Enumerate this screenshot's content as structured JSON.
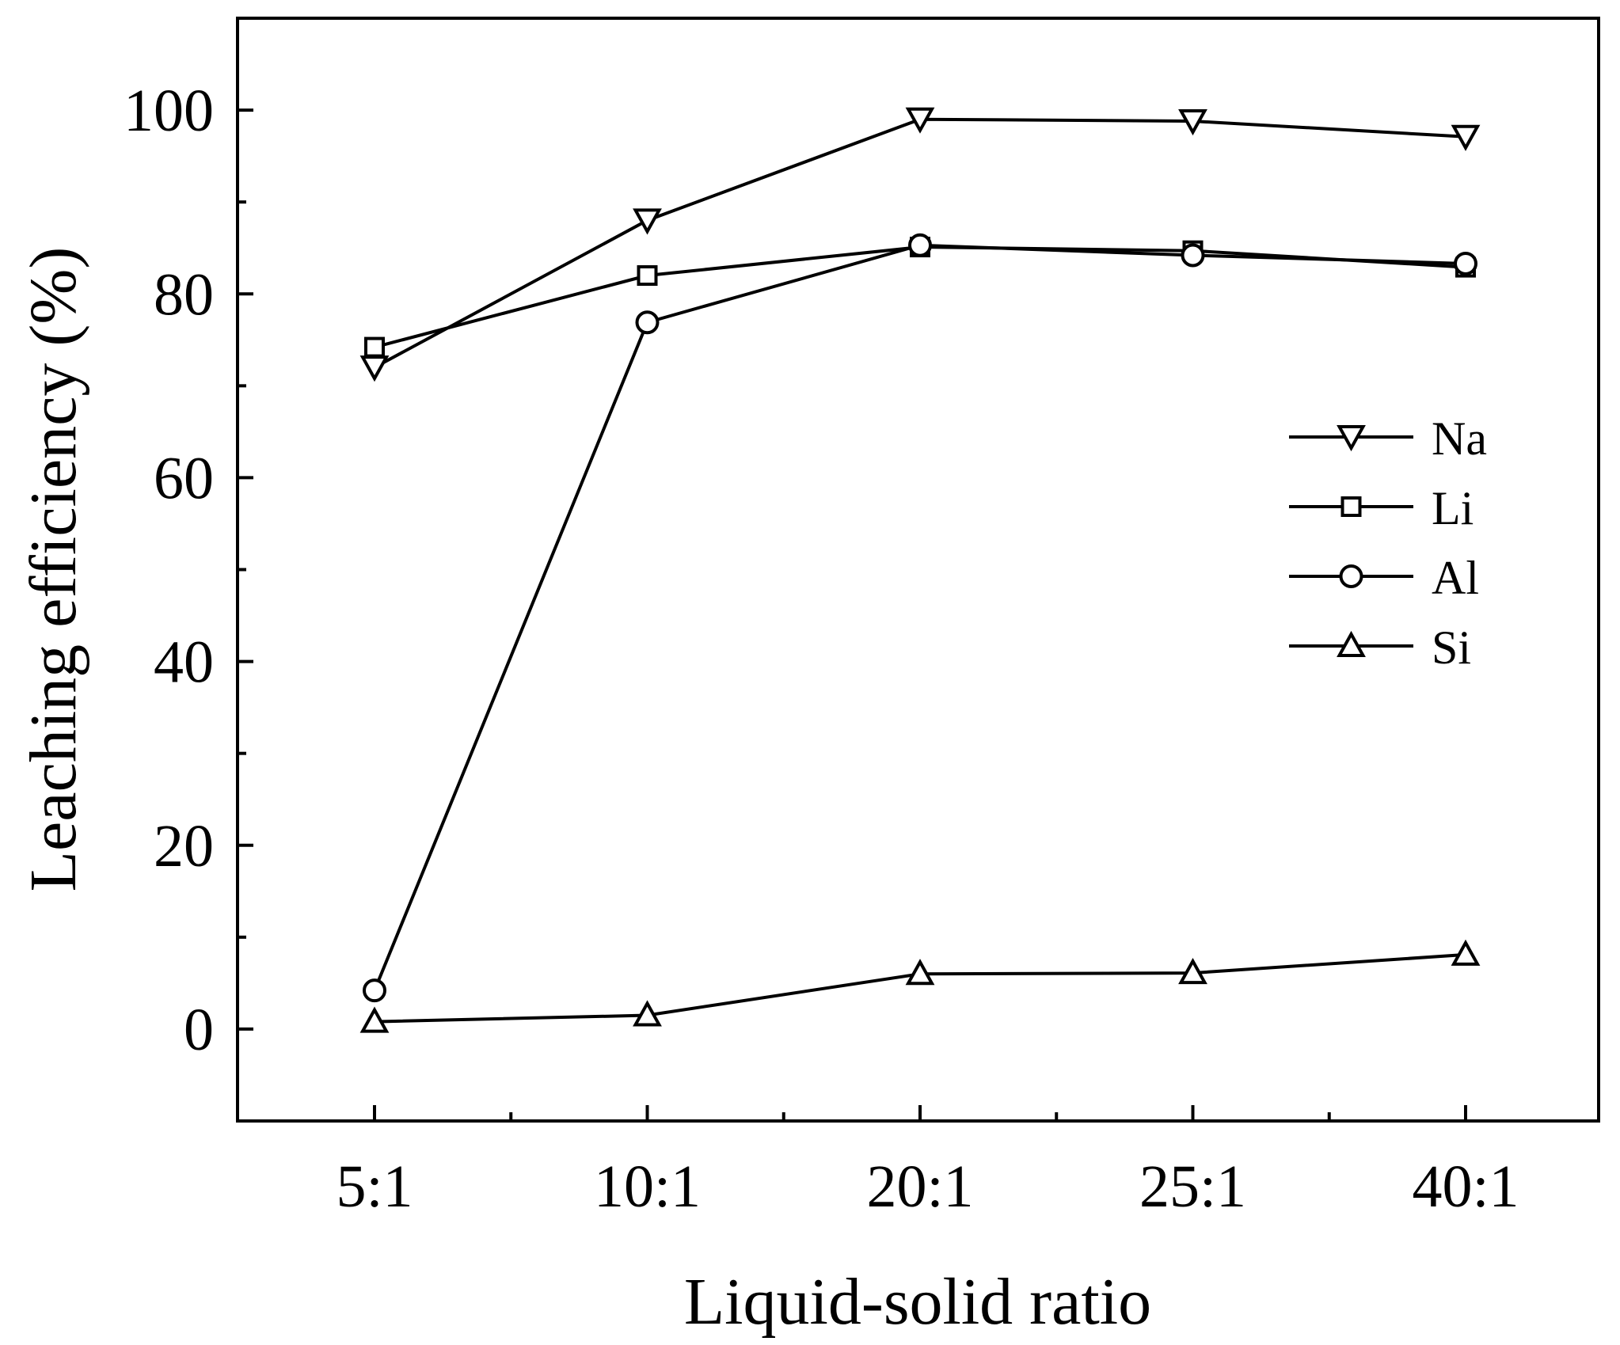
{
  "chart_data": {
    "type": "line",
    "title": "",
    "xlabel": "Liquid-solid ratio",
    "ylabel": "Leaching efficiency (%)",
    "categories": [
      "5:1",
      "10:1",
      "20:1",
      "25:1",
      "40:1"
    ],
    "ylim": [
      -10,
      110
    ],
    "yticks": [
      0,
      20,
      40,
      60,
      80,
      100
    ],
    "yticks_minor": [
      -10,
      10,
      30,
      50,
      70,
      90,
      110
    ],
    "grid": false,
    "legend_position": "right-center",
    "series": [
      {
        "name": "Na",
        "marker": "triangle-down",
        "values": [
          72,
          88,
          99,
          98.8,
          97.1
        ]
      },
      {
        "name": "Li",
        "marker": "square",
        "values": [
          74.2,
          82,
          85.1,
          84.7,
          82.9
        ]
      },
      {
        "name": "Al",
        "marker": "circle",
        "values": [
          4.2,
          76.9,
          85.3,
          84.2,
          83.3
        ]
      },
      {
        "name": "Si",
        "marker": "triangle-up",
        "values": [
          0.8,
          1.5,
          6,
          6.1,
          8.1
        ]
      }
    ],
    "colors": {
      "line": "#000000",
      "marker_fill": "#ffffff"
    }
  }
}
